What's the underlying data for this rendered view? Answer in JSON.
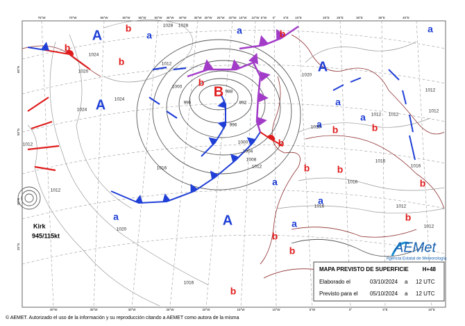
{
  "map": {
    "pressure_centers": [
      "A",
      "b",
      "a",
      "a",
      "b",
      "a",
      "A",
      "b",
      "A",
      "B",
      "b",
      "a",
      "a",
      "b",
      "b",
      "a",
      "a",
      "b",
      "b",
      "b",
      "a",
      "A",
      "a",
      "a",
      "b",
      "b",
      "b",
      "b",
      "b",
      "b"
    ],
    "isobar_labels": [
      1028,
      1028,
      1024,
      1020,
      1024,
      1024,
      1012,
      1000,
      996,
      988,
      992,
      996,
      1000,
      1004,
      1008,
      1012,
      1016,
      1020,
      1016,
      1012,
      1012,
      1020,
      1016,
      1012,
      1012,
      1016,
      1016,
      1016,
      1012,
      1012,
      1016,
      1012,
      1012
    ],
    "top_labels": [
      "75°W",
      "70°W",
      "65°W",
      "60°W",
      "55°W",
      "50°W",
      "45°W",
      "40°W",
      "35°W",
      "30°W",
      "25°W",
      "20°W",
      "15°W",
      "10°W",
      "5°W",
      "0°",
      "5°E",
      "10°E",
      "20°E",
      "25°E",
      "30°E",
      "35°E",
      "40°E"
    ],
    "bottom_labels": [
      "40°W",
      "35°W",
      "30°W",
      "25°W",
      "20°W",
      "15°W",
      "10°W",
      "5°W",
      "0°",
      "5°E",
      "10°E"
    ],
    "side_labels": [
      "60°N",
      "50°N",
      "30°N",
      "25°N"
    ],
    "storm": {
      "name": "Kirk",
      "intensity": "945/115kt"
    },
    "logo": {
      "name": "AEMet",
      "subtitle": "Agencia Estatal de Meteorología"
    },
    "info": {
      "title": "MAPA PREVISTO DE SUPERFICIE",
      "step": "H+48",
      "rows": [
        [
          "Elaborado el",
          "03/10/2024",
          "a",
          "12 UTC"
        ],
        [
          "Previsto para el",
          "05/10/2024",
          "a",
          "12 UTC"
        ]
      ]
    },
    "footer": "© AEMET. Autorizado el uso de la información y su reproducción citando a AEMET como autora de la misma"
  }
}
